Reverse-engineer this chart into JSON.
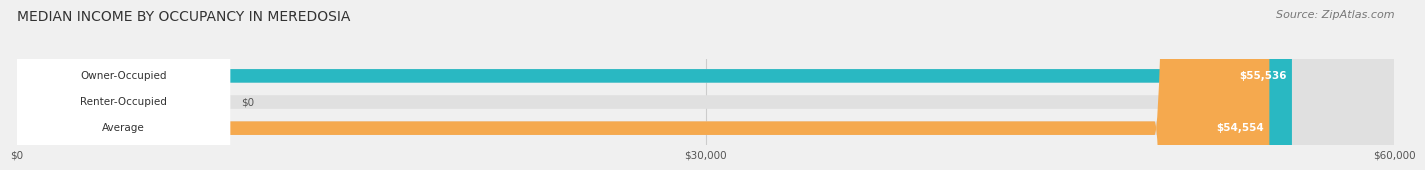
{
  "title": "MEDIAN INCOME BY OCCUPANCY IN MEREDOSIA",
  "source": "Source: ZipAtlas.com",
  "categories": [
    "Owner-Occupied",
    "Renter-Occupied",
    "Average"
  ],
  "values": [
    55536,
    0,
    54554
  ],
  "bar_colors": [
    "#29b8c2",
    "#c4a8d4",
    "#f5a94e"
  ],
  "bar_labels": [
    "$55,536",
    "$0",
    "$54,554"
  ],
  "xlim": [
    0,
    60000
  ],
  "xticks": [
    0,
    30000,
    60000
  ],
  "xtick_labels": [
    "$0",
    "$30,000",
    "$60,000"
  ],
  "background_color": "#f0f0f0",
  "title_fontsize": 10,
  "source_fontsize": 8,
  "bar_height": 0.52
}
